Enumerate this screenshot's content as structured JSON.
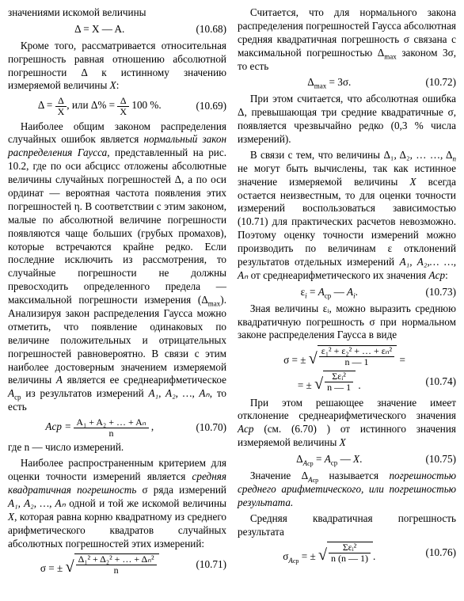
{
  "col1": {
    "p1": "значениями искомой величины",
    "eq68": {
      "f": "Δ = X — A.",
      "n": "(10.68)"
    },
    "p2a": "Кроме того, рассматривается относительная погрешность равная отношению абсолютной погрешности Δ к истинному значению измеряемой величины ",
    "p2b": "X",
    "p2c": ":",
    "eq69": {
      "lhs1": "Δ = ",
      "frac1_nu": "Δ",
      "frac1_de": "X",
      "mid": ",  или  Δ% = ",
      "frac2_nu": "Δ",
      "frac2_de": "X",
      "tail": " 100 %.",
      "n": "(10.69)"
    },
    "p3a": "Наиболее общим законом распределения случайных ошибок является ",
    "p3b": "нормальный закон распределения Гаусса",
    "p3c": ", представленный на рис. 10.2, где по оси абсцисс отложены абсолютные величины случайных погрешностей Δ, а по оси ординат — вероятная частота появления этих погрешностей η. В соответствии с этим законом, малые по абсолютной величине погрешности появляются чаще больших (грубых промахов), которые встречаются крайне редко. Если последние исключить из рассмотрения, то случайные погрешности не должны превосходить определенного предела — максимальной погрешности измерения (Δ",
    "p3d": "max",
    "p3e": "). Анализируя закон распределения Гаусса можно отметить, что появление одинаковых по величине положительных и отрицательных погрешностей равновероятно. В связи с этим наиболее достоверным значением измеряемой величины ",
    "p3f": "A",
    "p3g": " является ее среднеарифметическое ",
    "p3h": "A",
    "p3i": "ср",
    "p3j": " из результатов измерений ",
    "p3k": "A₁, A₂, …, Aₙ",
    "p3l": ", то есть",
    "eq70": {
      "lhs": "Aср = ",
      "nu": "A₁ + A₂ + … + Aₙ",
      "de": "n",
      "tail": " ,",
      "n": "(10.70)"
    },
    "p4": "где n — число измерений.",
    "p5a": "Наиболее распространенным критерием для оценки точности измерений является ",
    "p5b": "средняя квадратичная погрешность",
    "p5c": " σ ряда измерений ",
    "p5d": "A₁, A₂, …, Aₙ",
    "p5e": " одной и той же искомой величины ",
    "p5f": "X",
    "p5g": ", которая равна корню квадратному из среднего арифметического квадратов случайных абсолютных погрешностей этих измерений:",
    "eq71": {
      "lhs": "σ = ± ",
      "nu": "Δ₁² + Δ₂² + … + Δₙ²",
      "de": "n",
      "n": "(10.71)"
    }
  },
  "col2": {
    "p1a": "Считается, что для нормального закона распределения погрешностей Гаусса абсолютная средняя квадратичная погрешность σ связана с максимальной погрешностью Δ",
    "p1b": "max",
    "p1c": " законом 3σ, то есть",
    "eq72": {
      "f": "Δmax = 3σ.",
      "n": "(10.72)"
    },
    "p2": "При этом считается, что абсолютная ошибка Δ, превышающая три средние квадратичные σ, появляется чрезвычайно редко (0,3 % числа измерений).",
    "p3a": "В связи с тем, что величины Δ₁, Δ₂, … …, Δ",
    "p3b": "n",
    "p3c": " не могут быть вычислены, так как истинное значение измеряемой величины ",
    "p3d": "X",
    "p3e": " всегда остается неизвестным, то для оценки точности измерений воспользоваться зависимостью (10.71) для практических расчетов невозможно. Поэтому оценку точности измерений можно производить по величинам ε отклонений результатов отдельных измерений ",
    "p3f": "A₁, A₂,… …, Aₙ",
    "p3g": " от среднеарифметического их значения ",
    "p3h": "Aср",
    "p3i": ":",
    "eq73": {
      "f": "εᵢ = Aср — Aᵢ.",
      "n": "(10.73)"
    },
    "p4": "Зная величины εᵢ, можно выразить среднюю квадратичную погрешность σ при нормальном законе распределения Гаусса в виде",
    "eq74a": {
      "lhs": "σ = ± ",
      "nu": "ε₁² + ε₂² + … + εₙ²",
      "de": "n — 1",
      "tail": " ="
    },
    "eq74b": {
      "lhs": "= ± ",
      "nu": "Σεᵢ²",
      "de": "n — 1",
      "tail": " .",
      "n": "(10.74)"
    },
    "p5a": "При этом решающее значение имеет отклонение среднеарифметического значения ",
    "p5b": "Aср",
    "p5c": " (см. (6.70) ) от истинного значения измеряемой величины ",
    "p5d": "X",
    "eq75": {
      "lhs": "ΔAср",
      "mid": " = Aср — X.",
      "n": "(10.75)"
    },
    "p6a": "Значение Δ",
    "p6b": "Aср",
    "p6c": " называется ",
    "p6d": "погрешностью среднего арифметического, или погрешностью результата.",
    "p7": "Средняя квадратичная погрешность результата",
    "eq76": {
      "lhs": "σAср = ± ",
      "nu": "Σεᵢ²",
      "de": "n (n — 1)",
      "tail": ".",
      "n": "(10.76)"
    }
  }
}
